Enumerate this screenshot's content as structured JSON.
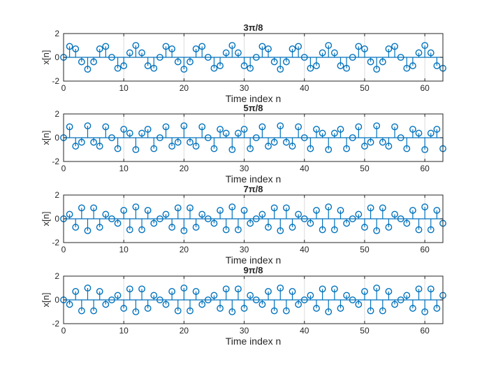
{
  "figure": {
    "colors": {
      "series": "#0072BD",
      "axes": "#262626",
      "grid": "#dcdcdc",
      "background": "#ffffff"
    }
  },
  "chart_data": [
    {
      "type": "stem",
      "title": "3π/8",
      "xlabel": "Time index n",
      "ylabel": "x[n]",
      "xlim": [
        0,
        63
      ],
      "ylim": [
        -2,
        2
      ],
      "xticks": [
        "0",
        "10",
        "20",
        "30",
        "40",
        "50",
        "60"
      ],
      "yticks": [
        "2",
        "0",
        "-2"
      ],
      "grid": true,
      "frequency": 1.1781,
      "n": [
        0,
        1,
        2,
        3,
        4,
        5,
        6,
        7,
        8,
        9,
        10,
        11,
        12,
        13,
        14,
        15,
        16,
        17,
        18,
        19,
        20,
        21,
        22,
        23,
        24,
        25,
        26,
        27,
        28,
        29,
        30,
        31,
        32,
        33,
        34,
        35,
        36,
        37,
        38,
        39,
        40,
        41,
        42,
        43,
        44,
        45,
        46,
        47,
        48,
        49,
        50,
        51,
        52,
        53,
        54,
        55,
        56,
        57,
        58,
        59,
        60,
        61,
        62,
        63
      ],
      "values": [
        0.0,
        0.92,
        0.71,
        -0.38,
        -1.0,
        -0.38,
        0.71,
        0.92,
        0.0,
        -0.92,
        -0.71,
        0.38,
        1.0,
        0.38,
        -0.71,
        -0.92,
        0.0,
        0.92,
        0.71,
        -0.38,
        -1.0,
        -0.38,
        0.71,
        0.92,
        0.0,
        -0.92,
        -0.71,
        0.38,
        1.0,
        0.38,
        -0.71,
        -0.92,
        0.0,
        0.92,
        0.71,
        -0.38,
        -1.0,
        -0.38,
        0.71,
        0.92,
        0.0,
        -0.92,
        -0.71,
        0.38,
        1.0,
        0.38,
        -0.71,
        -0.92,
        0.0,
        0.92,
        0.71,
        -0.38,
        -1.0,
        -0.38,
        0.71,
        0.92,
        0.0,
        -0.92,
        -0.71,
        0.38,
        1.0,
        0.38,
        -0.71,
        -0.92
      ]
    },
    {
      "type": "stem",
      "title": "5π/8",
      "xlabel": "Time index n",
      "ylabel": "x[n]",
      "xlim": [
        0,
        63
      ],
      "ylim": [
        -2,
        2
      ],
      "xticks": [
        "0",
        "10",
        "20",
        "30",
        "40",
        "50",
        "60"
      ],
      "yticks": [
        "2",
        "0",
        "-2"
      ],
      "grid": true,
      "frequency": 1.9635,
      "n": [
        0,
        1,
        2,
        3,
        4,
        5,
        6,
        7,
        8,
        9,
        10,
        11,
        12,
        13,
        14,
        15,
        16,
        17,
        18,
        19,
        20,
        21,
        22,
        23,
        24,
        25,
        26,
        27,
        28,
        29,
        30,
        31,
        32,
        33,
        34,
        35,
        36,
        37,
        38,
        39,
        40,
        41,
        42,
        43,
        44,
        45,
        46,
        47,
        48,
        49,
        50,
        51,
        52,
        53,
        54,
        55,
        56,
        57,
        58,
        59,
        60,
        61,
        62,
        63
      ],
      "values": [
        0.0,
        0.92,
        -0.71,
        -0.38,
        1.0,
        -0.38,
        -0.71,
        0.92,
        0.0,
        -0.92,
        0.71,
        0.38,
        -1.0,
        0.38,
        0.71,
        -0.92,
        0.0,
        0.92,
        -0.71,
        -0.38,
        1.0,
        -0.38,
        -0.71,
        0.92,
        0.0,
        -0.92,
        0.71,
        0.38,
        -1.0,
        0.38,
        0.71,
        -0.92,
        0.0,
        0.92,
        -0.71,
        -0.38,
        1.0,
        -0.38,
        -0.71,
        0.92,
        0.0,
        -0.92,
        0.71,
        0.38,
        -1.0,
        0.38,
        0.71,
        -0.92,
        0.0,
        0.92,
        -0.71,
        -0.38,
        1.0,
        -0.38,
        -0.71,
        0.92,
        0.0,
        -0.92,
        0.71,
        0.38,
        -1.0,
        0.38,
        0.71,
        -0.92
      ]
    },
    {
      "type": "stem",
      "title": "7π/8",
      "xlabel": "Time index n",
      "ylabel": "x[n]",
      "xlim": [
        0,
        63
      ],
      "ylim": [
        -2,
        2
      ],
      "xticks": [
        "0",
        "10",
        "20",
        "30",
        "40",
        "50",
        "60"
      ],
      "yticks": [
        "2",
        "0",
        "-2"
      ],
      "grid": true,
      "frequency": 2.7489,
      "n": [
        0,
        1,
        2,
        3,
        4,
        5,
        6,
        7,
        8,
        9,
        10,
        11,
        12,
        13,
        14,
        15,
        16,
        17,
        18,
        19,
        20,
        21,
        22,
        23,
        24,
        25,
        26,
        27,
        28,
        29,
        30,
        31,
        32,
        33,
        34,
        35,
        36,
        37,
        38,
        39,
        40,
        41,
        42,
        43,
        44,
        45,
        46,
        47,
        48,
        49,
        50,
        51,
        52,
        53,
        54,
        55,
        56,
        57,
        58,
        59,
        60,
        61,
        62,
        63
      ],
      "values": [
        0.0,
        0.38,
        -0.71,
        0.92,
        -1.0,
        0.92,
        -0.71,
        0.38,
        0.0,
        -0.38,
        0.71,
        -0.92,
        1.0,
        -0.92,
        0.71,
        -0.38,
        0.0,
        0.38,
        -0.71,
        0.92,
        -1.0,
        0.92,
        -0.71,
        0.38,
        0.0,
        -0.38,
        0.71,
        -0.92,
        1.0,
        -0.92,
        0.71,
        -0.38,
        0.0,
        0.38,
        -0.71,
        0.92,
        -1.0,
        0.92,
        -0.71,
        0.38,
        0.0,
        -0.38,
        0.71,
        -0.92,
        1.0,
        -0.92,
        0.71,
        -0.38,
        0.0,
        0.38,
        -0.71,
        0.92,
        -1.0,
        0.92,
        -0.71,
        0.38,
        0.0,
        -0.38,
        0.71,
        -0.92,
        1.0,
        -0.92,
        0.71,
        -0.38
      ]
    },
    {
      "type": "stem",
      "title": "9π/8",
      "xlabel": "Time index n",
      "ylabel": "x[n]",
      "xlim": [
        0,
        63
      ],
      "ylim": [
        -2,
        2
      ],
      "xticks": [
        "0",
        "10",
        "20",
        "30",
        "40",
        "50",
        "60"
      ],
      "yticks": [
        "2",
        "0",
        "-2"
      ],
      "grid": true,
      "frequency": 3.5343,
      "n": [
        0,
        1,
        2,
        3,
        4,
        5,
        6,
        7,
        8,
        9,
        10,
        11,
        12,
        13,
        14,
        15,
        16,
        17,
        18,
        19,
        20,
        21,
        22,
        23,
        24,
        25,
        26,
        27,
        28,
        29,
        30,
        31,
        32,
        33,
        34,
        35,
        36,
        37,
        38,
        39,
        40,
        41,
        42,
        43,
        44,
        45,
        46,
        47,
        48,
        49,
        50,
        51,
        52,
        53,
        54,
        55,
        56,
        57,
        58,
        59,
        60,
        61,
        62,
        63
      ],
      "values": [
        0.0,
        -0.38,
        0.71,
        -0.92,
        1.0,
        -0.92,
        0.71,
        -0.38,
        0.0,
        0.38,
        -0.71,
        0.92,
        -1.0,
        0.92,
        -0.71,
        0.38,
        0.0,
        -0.38,
        0.71,
        -0.92,
        1.0,
        -0.92,
        0.71,
        -0.38,
        0.0,
        0.38,
        -0.71,
        0.92,
        -1.0,
        0.92,
        -0.71,
        0.38,
        0.0,
        -0.38,
        0.71,
        -0.92,
        1.0,
        -0.92,
        0.71,
        -0.38,
        0.0,
        0.38,
        -0.71,
        0.92,
        -1.0,
        0.92,
        -0.71,
        0.38,
        0.0,
        -0.38,
        0.71,
        -0.92,
        1.0,
        -0.92,
        0.71,
        -0.38,
        0.0,
        0.38,
        -0.71,
        0.92,
        -1.0,
        0.92,
        -0.71,
        0.38
      ]
    }
  ]
}
